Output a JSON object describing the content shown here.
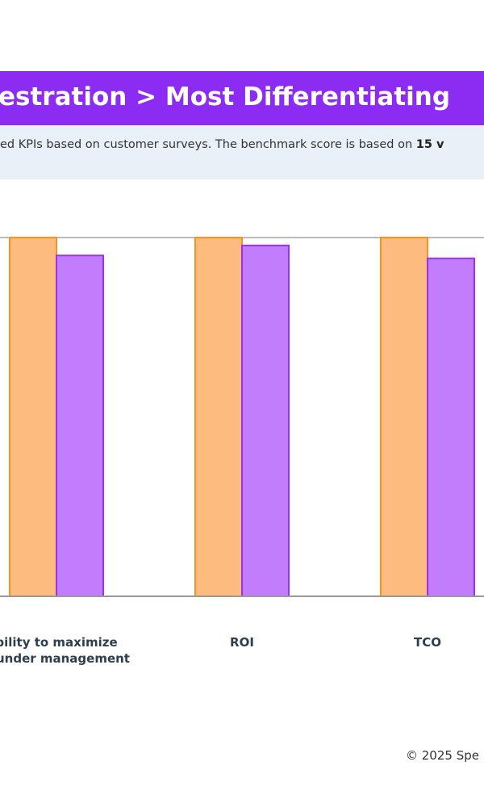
{
  "chart_data": {
    "type": "bar",
    "title": "estration > Most Differentiating",
    "subtitle": "ed KPIs based on customer surveys. The benchmark score is based on ",
    "subtitle_emphasis": "15 v",
    "categories": [
      "bility to maximize\nd under management",
      "ROI",
      "TCO"
    ],
    "series": [
      {
        "color": "#fdbb80",
        "edge_color": "#f7931e",
        "values": [
          5,
          5,
          5
        ]
      },
      {
        "color": "#c17dfc",
        "edge_color": "#9b30f0",
        "values": [
          4.75,
          4.89,
          4.71
        ]
      }
    ],
    "ylim": [
      0,
      5
    ],
    "footer": "© 2025 Spe"
  }
}
